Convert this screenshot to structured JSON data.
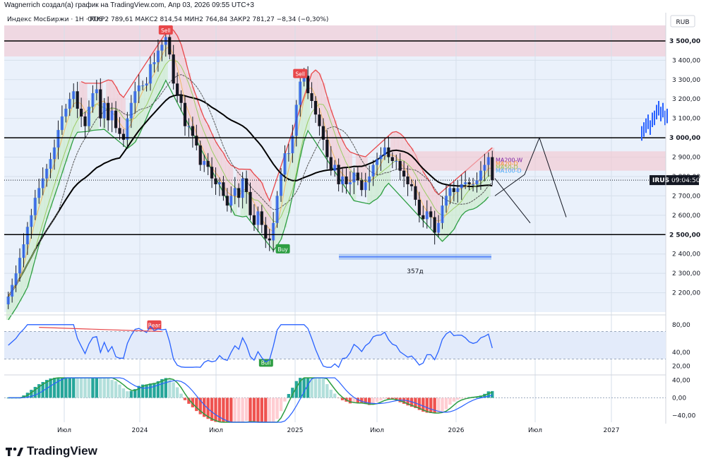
{
  "header": {
    "credit": "Wagnerrich создал(а) график на TradingView.com, Апр 03, 2026 09:55 UTC+3"
  },
  "chart_data": {
    "type": "candlestick",
    "title": "Индекс МосБиржи · 1Н · RUS",
    "ohlc_line": "ОТКР2 789,61  МАКС2 814,54  МИН2 764,84  ЗАКР2 781,27  −8,34 (−0,30%)",
    "currency": "RUB",
    "ylim": [
      2100,
      3580
    ],
    "y_ticks": [
      "3 500,00",
      "3 400,00",
      "3 300,00",
      "3 200,00",
      "3 100,00",
      "3 000,00",
      "2 900,00",
      "2 800,00",
      "2 700,00",
      "2 600,00",
      "2 500,00",
      "2 400,00",
      "2 300,00",
      "2 200,00"
    ],
    "x_ticks": [
      "Июл",
      "2024",
      "Июл",
      "2025",
      "Июл",
      "2026",
      "Июл",
      "2027"
    ],
    "horizontal_levels": [
      {
        "value": 3500,
        "label": "3 500,00"
      },
      {
        "value": 3000,
        "label": "3 000,00"
      },
      {
        "value": 2500,
        "label": "2 500,00"
      }
    ],
    "price_label": {
      "ticker": "IRUS",
      "time": "09:04:50",
      "value": 2781.27
    },
    "signals": [
      {
        "type": "Sell",
        "approx_date": "2024-05",
        "price": 3500
      },
      {
        "type": "Sell",
        "approx_date": "2025-02",
        "price": 3300
      },
      {
        "type": "Buy",
        "approx_date": "2024-12",
        "price": 2450
      }
    ],
    "ma_labels": [
      "MA200-W",
      "MA20-D",
      "MA50-D",
      "MA100-D"
    ],
    "range_measure": {
      "label": "357д"
    },
    "weekly_closes": [
      2180,
      2240,
      2300,
      2380,
      2450,
      2540,
      2600,
      2690,
      2740,
      2790,
      2840,
      2890,
      2950,
      3040,
      3110,
      3150,
      3200,
      3240,
      3150,
      3110,
      3060,
      3160,
      3230,
      3250,
      3100,
      3180,
      3090,
      3140,
      3050,
      3020,
      2990,
      3100,
      3180,
      3240,
      3270,
      3270,
      3280,
      3380,
      3390,
      3450,
      3480,
      3520,
      3430,
      3280,
      3220,
      3180,
      3060,
      3060,
      3010,
      2960,
      2860,
      2880,
      2850,
      2790,
      2760,
      2770,
      2700,
      2650,
      2700,
      2740,
      2690,
      2790,
      2720,
      2600,
      2550,
      2620,
      2550,
      2480,
      2470,
      2560,
      2700,
      2810,
      2920,
      2920,
      3010,
      3170,
      3290,
      3320,
      3230,
      3190,
      3120,
      3060,
      2990,
      2900,
      2830,
      2860,
      2760,
      2800,
      2760,
      2770,
      2820,
      2780,
      2730,
      2770,
      2800,
      2860,
      2890,
      2910,
      2950,
      2900,
      2880,
      2880,
      2830,
      2800,
      2760,
      2750,
      2680,
      2600,
      2580,
      2620,
      2590,
      2510,
      2560,
      2650,
      2700,
      2740,
      2720,
      2740,
      2760,
      2770,
      2760,
      2760,
      2780,
      2830,
      2860,
      2900,
      2781
    ],
    "future_projection_bars": [
      3020,
      3040,
      3060,
      3080,
      3050,
      3090,
      3100,
      3130,
      3150,
      3120,
      3140,
      3100,
      3110
    ],
    "rsi": {
      "ticks": [
        "80,00",
        "40,00",
        "20,00"
      ],
      "overbought": 70,
      "oversold": 30,
      "labels": [
        "Bear",
        "Bull"
      ]
    },
    "macd": {
      "ticks": [
        "40,00",
        "0,00",
        "−40,00"
      ]
    }
  },
  "footer": {
    "logo_icon": "tradingview-logo-icon",
    "brand": "TradingView"
  }
}
